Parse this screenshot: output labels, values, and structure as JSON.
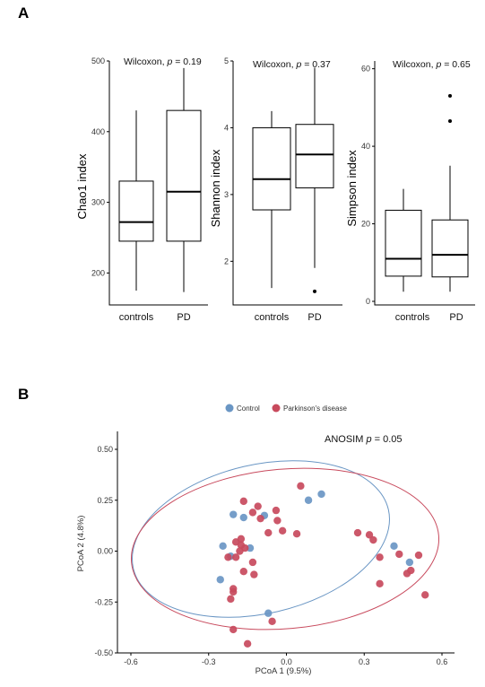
{
  "panels": {
    "a": "A",
    "b": "B"
  },
  "colors": {
    "control": "#6a96c4",
    "pd": "#c84a5d",
    "box": "#000000"
  },
  "chart_data": [
    {
      "type": "box",
      "ylabel": "Chao1 index",
      "stat_prefix": "Wilcoxon, ",
      "stat_p": "p",
      "stat_value": " = 0.19",
      "categories": [
        "controls",
        "PD"
      ],
      "yticks": [
        200,
        300,
        400,
        500
      ],
      "ylim": [
        170,
        500
      ],
      "boxes": [
        {
          "name": "controls",
          "min": 175,
          "q1": 245,
          "median": 272,
          "q3": 330,
          "max": 430,
          "outliers": []
        },
        {
          "name": "PD",
          "min": 173,
          "q1": 245,
          "median": 315,
          "q3": 430,
          "max": 490,
          "outliers": []
        }
      ]
    },
    {
      "type": "box",
      "ylabel": "Shannon index",
      "stat_prefix": "Wilcoxon, ",
      "stat_p": "p",
      "stat_value": " = 0.37",
      "categories": [
        "controls",
        "PD"
      ],
      "yticks": [
        2,
        3,
        4,
        5
      ],
      "ylim": [
        1.4,
        5
      ],
      "boxes": [
        {
          "name": "controls",
          "min": 1.6,
          "q1": 2.77,
          "median": 3.23,
          "q3": 4.0,
          "max": 4.25,
          "outliers": []
        },
        {
          "name": "PD",
          "min": 1.9,
          "q1": 3.1,
          "median": 3.6,
          "q3": 4.05,
          "max": 4.9,
          "outliers": [
            1.55
          ]
        }
      ]
    },
    {
      "type": "box",
      "ylabel": "Simpson index",
      "stat_prefix": "Wilcoxon, ",
      "stat_p": "p",
      "stat_value": " = 0.65",
      "categories": [
        "controls",
        "PD"
      ],
      "yticks": [
        0,
        20,
        40,
        60
      ],
      "yticklabels": [
        "0",
        "20",
        "40",
        "60"
      ],
      "ylim": [
        0,
        62
      ],
      "boxes": [
        {
          "name": "controls",
          "min": 2.5,
          "q1": 6.5,
          "median": 11,
          "q3": 23.5,
          "max": 29,
          "outliers": []
        },
        {
          "name": "PD",
          "min": 2.5,
          "q1": 6.3,
          "median": 12,
          "q3": 21,
          "max": 35,
          "outliers": [
            46.5,
            53
          ]
        }
      ]
    },
    {
      "type": "scatter",
      "xlabel": "PCoA 1 (9.5%)",
      "ylabel": "PCoA 2 (4.8%)",
      "annotation_prefix": "ANOSIM ",
      "annotation_p": "p",
      "annotation_value": " = 0.05",
      "legend": [
        "Control",
        "Parkinson's disease"
      ],
      "xlim": [
        -0.6,
        0.6
      ],
      "ylim": [
        -0.5,
        0.5
      ],
      "xticks": [
        -0.6,
        -0.3,
        0.0,
        0.3,
        0.6
      ],
      "xticklabels": [
        "-0.6",
        "-0.3",
        "0.0",
        "0.3",
        "0.6"
      ],
      "yticks": [
        -0.5,
        -0.25,
        0.0,
        0.25,
        0.5
      ],
      "yticklabels": [
        "-0.50",
        "-0.25",
        "0.00",
        "0.25",
        "0.50"
      ],
      "series": [
        {
          "name": "Control",
          "color": "#6a96c4",
          "points": [
            [
              -0.205,
              0.18
            ],
            [
              -0.165,
              0.165
            ],
            [
              -0.085,
              0.175
            ],
            [
              0.085,
              0.25
            ],
            [
              0.135,
              0.28
            ],
            [
              -0.245,
              0.025
            ],
            [
              -0.14,
              0.015
            ],
            [
              -0.215,
              -0.025
            ],
            [
              -0.255,
              -0.14
            ],
            [
              -0.07,
              -0.305
            ],
            [
              0.415,
              0.025
            ],
            [
              0.475,
              -0.055
            ]
          ]
        },
        {
          "name": "Parkinson's disease",
          "color": "#c84a5d",
          "points": [
            [
              -0.165,
              0.245
            ],
            [
              -0.11,
              0.22
            ],
            [
              -0.13,
              0.19
            ],
            [
              -0.1,
              0.16
            ],
            [
              -0.04,
              0.2
            ],
            [
              -0.035,
              0.15
            ],
            [
              0.055,
              0.32
            ],
            [
              -0.175,
              0.06
            ],
            [
              -0.195,
              0.045
            ],
            [
              -0.175,
              0.03
            ],
            [
              -0.16,
              0.015
            ],
            [
              -0.07,
              0.09
            ],
            [
              -0.015,
              0.1
            ],
            [
              0.04,
              0.085
            ],
            [
              -0.18,
              0.0
            ],
            [
              -0.195,
              -0.03
            ],
            [
              -0.13,
              -0.055
            ],
            [
              -0.225,
              -0.03
            ],
            [
              -0.165,
              -0.1
            ],
            [
              -0.125,
              -0.115
            ],
            [
              -0.205,
              -0.185
            ],
            [
              -0.215,
              -0.235
            ],
            [
              -0.205,
              -0.2
            ],
            [
              -0.055,
              -0.345
            ],
            [
              -0.205,
              -0.385
            ],
            [
              -0.15,
              -0.455
            ],
            [
              0.275,
              0.09
            ],
            [
              0.32,
              0.08
            ],
            [
              0.335,
              0.055
            ],
            [
              0.36,
              -0.03
            ],
            [
              0.36,
              -0.16
            ],
            [
              0.435,
              -0.015
            ],
            [
              0.51,
              -0.02
            ],
            [
              0.465,
              -0.11
            ],
            [
              0.48,
              -0.095
            ],
            [
              0.535,
              -0.215
            ]
          ]
        }
      ]
    }
  ]
}
